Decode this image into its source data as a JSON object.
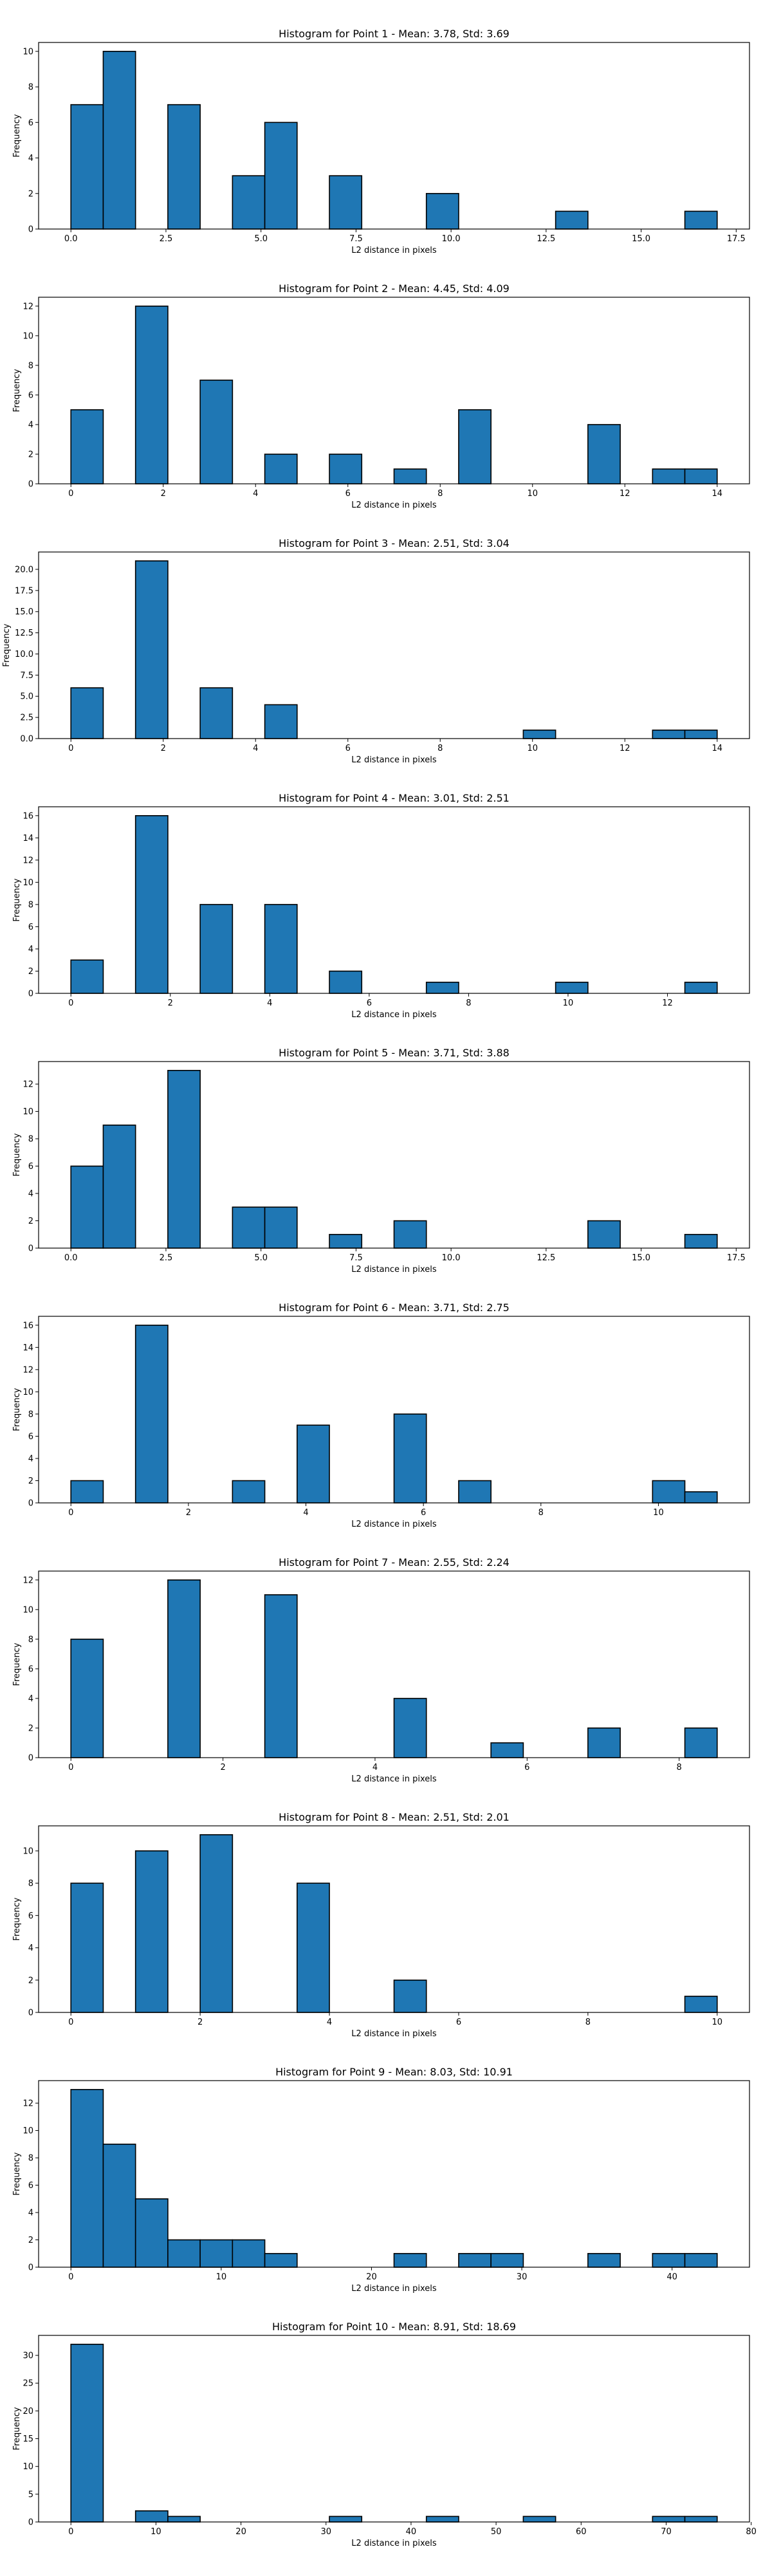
{
  "chart_data": [
    {
      "type": "bar",
      "title": "Histogram for Point 1 - Mean: 3.78, Std: 3.69",
      "xlabel": "L2 distance in pixels",
      "ylabel": "Frequency",
      "xlim": [
        -0.85,
        17.85
      ],
      "ylim": [
        0,
        10.5
      ],
      "xticks": [
        0.0,
        2.5,
        5.0,
        7.5,
        10.0,
        12.5,
        15.0,
        17.5
      ],
      "xtick_labels": [
        "0.0",
        "2.5",
        "5.0",
        "7.5",
        "10.0",
        "12.5",
        "15.0",
        "17.5"
      ],
      "yticks": [
        0,
        2,
        4,
        6,
        8,
        10
      ],
      "ytick_labels": [
        "0",
        "2",
        "4",
        "6",
        "8",
        "10"
      ],
      "bars": [
        {
          "x0": 0.0,
          "x1": 0.85,
          "value": 7
        },
        {
          "x0": 0.85,
          "x1": 1.7,
          "value": 10
        },
        {
          "x0": 2.55,
          "x1": 3.4,
          "value": 7
        },
        {
          "x0": 4.25,
          "x1": 5.1,
          "value": 3
        },
        {
          "x0": 5.1,
          "x1": 5.95,
          "value": 6
        },
        {
          "x0": 6.8,
          "x1": 7.65,
          "value": 3
        },
        {
          "x0": 9.35,
          "x1": 10.2,
          "value": 2
        },
        {
          "x0": 12.75,
          "x1": 13.6,
          "value": 1
        },
        {
          "x0": 16.15,
          "x1": 17.0,
          "value": 1
        }
      ]
    },
    {
      "type": "bar",
      "title": "Histogram for Point 2 - Mean: 4.45, Std: 4.09",
      "xlabel": "L2 distance in pixels",
      "ylabel": "Frequency",
      "xlim": [
        -0.7,
        14.7
      ],
      "ylim": [
        0,
        12.6
      ],
      "xticks": [
        0,
        2,
        4,
        6,
        8,
        10,
        12,
        14
      ],
      "xtick_labels": [
        "0",
        "2",
        "4",
        "6",
        "8",
        "10",
        "12",
        "14"
      ],
      "yticks": [
        0,
        2,
        4,
        6,
        8,
        10,
        12
      ],
      "ytick_labels": [
        "0",
        "2",
        "4",
        "6",
        "8",
        "10",
        "12"
      ],
      "bars": [
        {
          "x0": 0.0,
          "x1": 0.7,
          "value": 5
        },
        {
          "x0": 1.4,
          "x1": 2.1,
          "value": 12
        },
        {
          "x0": 2.8,
          "x1": 3.5,
          "value": 7
        },
        {
          "x0": 4.2,
          "x1": 4.9,
          "value": 2
        },
        {
          "x0": 5.6,
          "x1": 6.3,
          "value": 2
        },
        {
          "x0": 7.0,
          "x1": 7.7,
          "value": 1
        },
        {
          "x0": 8.4,
          "x1": 9.1,
          "value": 5
        },
        {
          "x0": 11.2,
          "x1": 11.9,
          "value": 4
        },
        {
          "x0": 12.6,
          "x1": 13.3,
          "value": 1
        },
        {
          "x0": 13.3,
          "x1": 14.0,
          "value": 1
        }
      ]
    },
    {
      "type": "bar",
      "title": "Histogram for Point 3 - Mean: 2.51, Std: 3.04",
      "xlabel": "L2 distance in pixels",
      "ylabel": "Frequency",
      "xlim": [
        -0.7,
        14.7
      ],
      "ylim": [
        0,
        22.05
      ],
      "xticks": [
        0,
        2,
        4,
        6,
        8,
        10,
        12,
        14
      ],
      "xtick_labels": [
        "0",
        "2",
        "4",
        "6",
        "8",
        "10",
        "12",
        "14"
      ],
      "yticks": [
        0,
        2.5,
        5.0,
        7.5,
        10.0,
        12.5,
        15.0,
        17.5,
        20.0
      ],
      "ytick_labels": [
        "0.0",
        "2.5",
        "5.0",
        "7.5",
        "10.0",
        "12.5",
        "15.0",
        "17.5",
        "20.0"
      ],
      "bars": [
        {
          "x0": 0.0,
          "x1": 0.7,
          "value": 6
        },
        {
          "x0": 1.4,
          "x1": 2.1,
          "value": 21
        },
        {
          "x0": 2.8,
          "x1": 3.5,
          "value": 6
        },
        {
          "x0": 4.2,
          "x1": 4.9,
          "value": 4
        },
        {
          "x0": 9.8,
          "x1": 10.5,
          "value": 1
        },
        {
          "x0": 12.6,
          "x1": 13.3,
          "value": 1
        },
        {
          "x0": 13.3,
          "x1": 14.0,
          "value": 1
        }
      ]
    },
    {
      "type": "bar",
      "title": "Histogram for Point 4 - Mean: 3.01, Std: 2.51",
      "xlabel": "L2 distance in pixels",
      "ylabel": "Frequency",
      "xlim": [
        -0.65,
        13.65
      ],
      "ylim": [
        0,
        16.8
      ],
      "xticks": [
        0,
        2,
        4,
        6,
        8,
        10,
        12
      ],
      "xtick_labels": [
        "0",
        "2",
        "4",
        "6",
        "8",
        "10",
        "12"
      ],
      "yticks": [
        0,
        2,
        4,
        6,
        8,
        10,
        12,
        14,
        16
      ],
      "ytick_labels": [
        "0",
        "2",
        "4",
        "6",
        "8",
        "10",
        "12",
        "14",
        "16"
      ],
      "bars": [
        {
          "x0": 0.0,
          "x1": 0.65,
          "value": 3
        },
        {
          "x0": 1.3,
          "x1": 1.95,
          "value": 16
        },
        {
          "x0": 2.6,
          "x1": 3.25,
          "value": 8
        },
        {
          "x0": 3.9,
          "x1": 4.55,
          "value": 8
        },
        {
          "x0": 5.2,
          "x1": 5.85,
          "value": 2
        },
        {
          "x0": 7.15,
          "x1": 7.8,
          "value": 1
        },
        {
          "x0": 9.75,
          "x1": 10.4,
          "value": 1
        },
        {
          "x0": 12.35,
          "x1": 13.0,
          "value": 1
        }
      ]
    },
    {
      "type": "bar",
      "title": "Histogram for Point 5 - Mean: 3.71, Std: 3.88",
      "xlabel": "L2 distance in pixels",
      "ylabel": "Frequency",
      "xlim": [
        -0.85,
        17.85
      ],
      "ylim": [
        0,
        13.65
      ],
      "xticks": [
        0.0,
        2.5,
        5.0,
        7.5,
        10.0,
        12.5,
        15.0,
        17.5
      ],
      "xtick_labels": [
        "0.0",
        "2.5",
        "5.0",
        "7.5",
        "10.0",
        "12.5",
        "15.0",
        "17.5"
      ],
      "yticks": [
        0,
        2,
        4,
        6,
        8,
        10,
        12
      ],
      "ytick_labels": [
        "0",
        "2",
        "4",
        "6",
        "8",
        "10",
        "12"
      ],
      "bars": [
        {
          "x0": 0.0,
          "x1": 0.85,
          "value": 6
        },
        {
          "x0": 0.85,
          "x1": 1.7,
          "value": 9
        },
        {
          "x0": 2.55,
          "x1": 3.4,
          "value": 13
        },
        {
          "x0": 4.25,
          "x1": 5.1,
          "value": 3
        },
        {
          "x0": 5.1,
          "x1": 5.95,
          "value": 3
        },
        {
          "x0": 6.8,
          "x1": 7.65,
          "value": 1
        },
        {
          "x0": 8.5,
          "x1": 9.35,
          "value": 2
        },
        {
          "x0": 13.6,
          "x1": 14.45,
          "value": 2
        },
        {
          "x0": 16.15,
          "x1": 17.0,
          "value": 1
        }
      ]
    },
    {
      "type": "bar",
      "title": "Histogram for Point 6 - Mean: 3.71, Std: 2.75",
      "xlabel": "L2 distance in pixels",
      "ylabel": "Frequency",
      "xlim": [
        -0.55,
        11.55
      ],
      "ylim": [
        0,
        16.8
      ],
      "xticks": [
        0,
        2,
        4,
        6,
        8,
        10
      ],
      "xtick_labels": [
        "0",
        "2",
        "4",
        "6",
        "8",
        "10"
      ],
      "yticks": [
        0,
        2,
        4,
        6,
        8,
        10,
        12,
        14,
        16
      ],
      "ytick_labels": [
        "0",
        "2",
        "4",
        "6",
        "8",
        "10",
        "12",
        "14",
        "16"
      ],
      "bars": [
        {
          "x0": 0.0,
          "x1": 0.55,
          "value": 2
        },
        {
          "x0": 1.1,
          "x1": 1.65,
          "value": 16
        },
        {
          "x0": 2.75,
          "x1": 3.3,
          "value": 2
        },
        {
          "x0": 3.85,
          "x1": 4.4,
          "value": 7
        },
        {
          "x0": 5.5,
          "x1": 6.05,
          "value": 8
        },
        {
          "x0": 6.6,
          "x1": 7.15,
          "value": 2
        },
        {
          "x0": 9.9,
          "x1": 10.45,
          "value": 2
        },
        {
          "x0": 10.45,
          "x1": 11.0,
          "value": 1
        }
      ]
    },
    {
      "type": "bar",
      "title": "Histogram for Point 7 - Mean: 2.55, Std: 2.24",
      "xlabel": "L2 distance in pixels",
      "ylabel": "Frequency",
      "xlim": [
        -0.425,
        8.925
      ],
      "ylim": [
        0,
        12.6
      ],
      "xticks": [
        0,
        2,
        4,
        6,
        8
      ],
      "xtick_labels": [
        "0",
        "2",
        "4",
        "6",
        "8"
      ],
      "yticks": [
        0,
        2,
        4,
        6,
        8,
        10,
        12
      ],
      "ytick_labels": [
        "0",
        "2",
        "4",
        "6",
        "8",
        "10",
        "12"
      ],
      "bars": [
        {
          "x0": 0.0,
          "x1": 0.425,
          "value": 8
        },
        {
          "x0": 1.275,
          "x1": 1.7,
          "value": 12
        },
        {
          "x0": 2.55,
          "x1": 2.975,
          "value": 11
        },
        {
          "x0": 4.25,
          "x1": 4.675,
          "value": 4
        },
        {
          "x0": 5.525,
          "x1": 5.95,
          "value": 1
        },
        {
          "x0": 6.8,
          "x1": 7.225,
          "value": 2
        },
        {
          "x0": 8.075,
          "x1": 8.5,
          "value": 2
        }
      ]
    },
    {
      "type": "bar",
      "title": "Histogram for Point 8 - Mean: 2.51, Std: 2.01",
      "xlabel": "L2 distance in pixels",
      "ylabel": "Frequency",
      "xlim": [
        -0.5,
        10.5
      ],
      "ylim": [
        0,
        11.55
      ],
      "xticks": [
        0,
        2,
        4,
        6,
        8,
        10
      ],
      "xtick_labels": [
        "0",
        "2",
        "4",
        "6",
        "8",
        "10"
      ],
      "yticks": [
        0,
        2,
        4,
        6,
        8,
        10
      ],
      "ytick_labels": [
        "0",
        "2",
        "4",
        "6",
        "8",
        "10"
      ],
      "bars": [
        {
          "x0": 0.0,
          "x1": 0.5,
          "value": 8
        },
        {
          "x0": 1.0,
          "x1": 1.5,
          "value": 10
        },
        {
          "x0": 2.0,
          "x1": 2.5,
          "value": 11
        },
        {
          "x0": 3.5,
          "x1": 4.0,
          "value": 8
        },
        {
          "x0": 5.0,
          "x1": 5.5,
          "value": 2
        },
        {
          "x0": 9.5,
          "x1": 10.0,
          "value": 1
        }
      ]
    },
    {
      "type": "bar",
      "title": "Histogram for Point 9 - Mean: 8.03, Std: 10.91",
      "xlabel": "L2 distance in pixels",
      "ylabel": "Frequency",
      "xlim": [
        -2.15,
        45.15
      ],
      "ylim": [
        0,
        13.65
      ],
      "xticks": [
        0,
        10,
        20,
        30,
        40
      ],
      "xtick_labels": [
        "0",
        "10",
        "20",
        "30",
        "40"
      ],
      "yticks": [
        0,
        2,
        4,
        6,
        8,
        10,
        12
      ],
      "ytick_labels": [
        "0",
        "2",
        "4",
        "6",
        "8",
        "10",
        "12"
      ],
      "bars": [
        {
          "x0": 0.0,
          "x1": 2.15,
          "value": 13
        },
        {
          "x0": 2.15,
          "x1": 4.3,
          "value": 9
        },
        {
          "x0": 4.3,
          "x1": 6.45,
          "value": 5
        },
        {
          "x0": 6.45,
          "x1": 8.6,
          "value": 2
        },
        {
          "x0": 8.6,
          "x1": 10.75,
          "value": 2
        },
        {
          "x0": 10.75,
          "x1": 12.9,
          "value": 2
        },
        {
          "x0": 12.9,
          "x1": 15.05,
          "value": 1
        },
        {
          "x0": 21.5,
          "x1": 23.65,
          "value": 1
        },
        {
          "x0": 25.8,
          "x1": 27.95,
          "value": 1
        },
        {
          "x0": 27.95,
          "x1": 30.1,
          "value": 1
        },
        {
          "x0": 34.4,
          "x1": 36.55,
          "value": 1
        },
        {
          "x0": 38.7,
          "x1": 40.85,
          "value": 1
        },
        {
          "x0": 40.85,
          "x1": 43.0,
          "value": 1
        }
      ]
    },
    {
      "type": "bar",
      "title": "Histogram for Point 10 - Mean: 8.91, Std: 18.69",
      "xlabel": "L2 distance in pixels",
      "ylabel": "Frequency",
      "xlim": [
        -3.8,
        79.8
      ],
      "ylim": [
        0,
        33.6
      ],
      "xticks": [
        0,
        10,
        20,
        30,
        40,
        50,
        60,
        70,
        80
      ],
      "xtick_labels": [
        "0",
        "10",
        "20",
        "30",
        "40",
        "50",
        "60",
        "70",
        "80"
      ],
      "yticks": [
        0,
        5,
        10,
        15,
        20,
        25,
        30
      ],
      "ytick_labels": [
        "0",
        "5",
        "10",
        "15",
        "20",
        "25",
        "30"
      ],
      "bars": [
        {
          "x0": 0.0,
          "x1": 3.8,
          "value": 32
        },
        {
          "x0": 7.6,
          "x1": 11.4,
          "value": 2
        },
        {
          "x0": 11.4,
          "x1": 15.2,
          "value": 1
        },
        {
          "x0": 30.4,
          "x1": 34.2,
          "value": 1
        },
        {
          "x0": 41.8,
          "x1": 45.6,
          "value": 1
        },
        {
          "x0": 53.2,
          "x1": 57.0,
          "value": 1
        },
        {
          "x0": 68.4,
          "x1": 72.2,
          "value": 1
        },
        {
          "x0": 72.2,
          "x1": 76.0,
          "value": 1
        }
      ]
    }
  ],
  "colors": {
    "bar_fill": "#1f77b4",
    "bar_edge": "#000000",
    "axis": "#000000",
    "text": "#000000"
  }
}
